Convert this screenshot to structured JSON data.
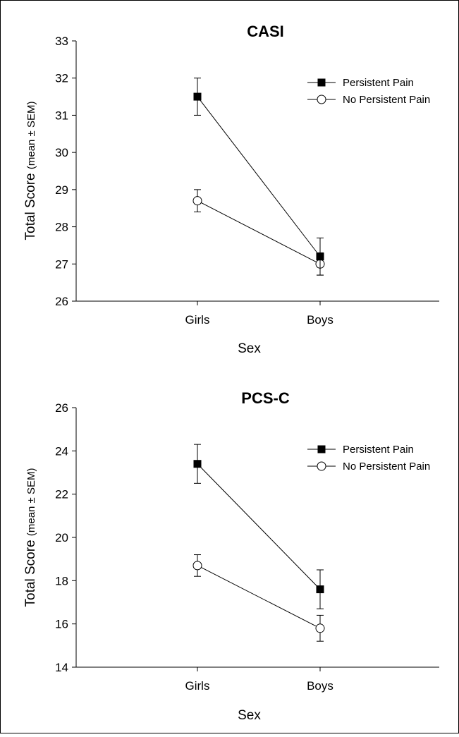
{
  "chart_data": [
    {
      "type": "line",
      "title": "CASI",
      "xlabel": "Sex",
      "ylabel_main": "Total Score",
      "ylabel_sub": "(mean ± SEM)",
      "categories": [
        "Girls",
        "Boys"
      ],
      "ylim": [
        26,
        33
      ],
      "yticks": [
        26,
        27,
        28,
        29,
        30,
        31,
        32,
        33
      ],
      "legend_position": "top-right",
      "grid": false,
      "series": [
        {
          "name": "Persistent Pain",
          "marker": "filled-square",
          "values": [
            31.5,
            27.2
          ],
          "error": [
            0.5,
            0.5
          ]
        },
        {
          "name": "No Persistent Pain",
          "marker": "open-circle",
          "values": [
            28.7,
            27.0
          ],
          "error": [
            0.3,
            0.3
          ]
        }
      ]
    },
    {
      "type": "line",
      "title": "PCS-C",
      "xlabel": "Sex",
      "ylabel_main": "Total Score",
      "ylabel_sub": "(mean ± SEM)",
      "categories": [
        "Girls",
        "Boys"
      ],
      "ylim": [
        14,
        26
      ],
      "yticks": [
        14,
        16,
        18,
        20,
        22,
        24,
        26
      ],
      "legend_position": "top-right",
      "grid": false,
      "series": [
        {
          "name": "Persistent Pain",
          "marker": "filled-square",
          "values": [
            23.4,
            17.6
          ],
          "error": [
            0.9,
            0.9
          ]
        },
        {
          "name": "No Persistent Pain",
          "marker": "open-circle",
          "values": [
            18.7,
            15.8
          ],
          "error": [
            0.5,
            0.6
          ]
        }
      ]
    }
  ]
}
